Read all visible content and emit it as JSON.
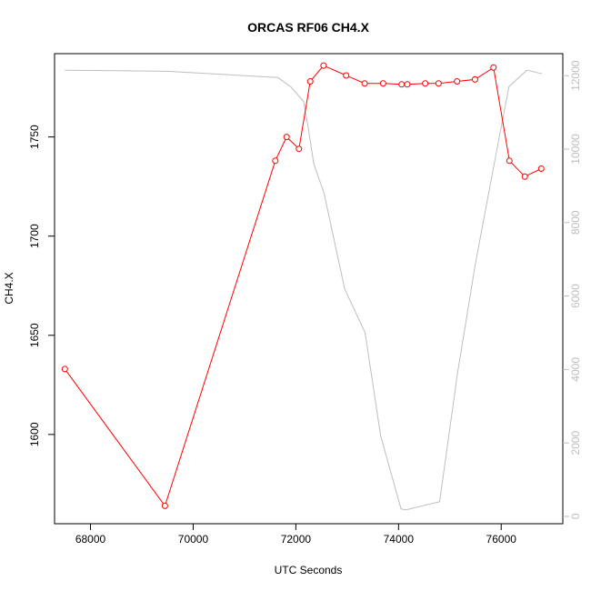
{
  "chart_data": {
    "type": "line",
    "title": "ORCAS RF06 CH4.X",
    "xlabel": "UTC Seconds",
    "ylabel": "CH4.X",
    "xlim": [
      67300,
      77200
    ],
    "ylim": [
      1555,
      1792
    ],
    "y2lim": [
      -200,
      12600
    ],
    "x_ticks": [
      68000,
      70000,
      72000,
      74000,
      76000
    ],
    "y_ticks": [
      1600,
      1650,
      1700,
      1750
    ],
    "y2_ticks": [
      0,
      2000,
      4000,
      6000,
      8000,
      10000,
      12000
    ],
    "grid": false,
    "colors": {
      "primary": "#ff0000",
      "secondary": "#bebebe",
      "axis": "#000000"
    },
    "series": [
      {
        "axis": "left",
        "color": "#ff0000",
        "markers": "open-circle",
        "x": [
          67500,
          69450,
          71600,
          71820,
          72060,
          72280,
          72540,
          72980,
          73340,
          73700,
          74060,
          74170,
          74520,
          74780,
          75140,
          75490,
          75850,
          76160,
          76460,
          76780
        ],
        "values": [
          1633,
          1564,
          1738,
          1750,
          1744,
          1778,
          1786,
          1781,
          1777,
          1777,
          1776.5,
          1776.5,
          1777,
          1777,
          1778,
          1779,
          1785,
          1738,
          1730,
          1734
        ]
      },
      {
        "axis": "right",
        "color": "#bebebe",
        "markers": "none",
        "x": [
          67500,
          69500,
          71650,
          71900,
          72150,
          72250,
          72350,
          72550,
          72950,
          73350,
          73650,
          74050,
          74150,
          74500,
          74800,
          75150,
          75500,
          75850,
          76150,
          76500,
          76800
        ],
        "values": [
          12150,
          12120,
          11950,
          11700,
          11300,
          10500,
          9600,
          8800,
          6200,
          5000,
          2200,
          200,
          180,
          300,
          400,
          3900,
          6900,
          9500,
          11700,
          12150,
          12050
        ]
      }
    ]
  }
}
